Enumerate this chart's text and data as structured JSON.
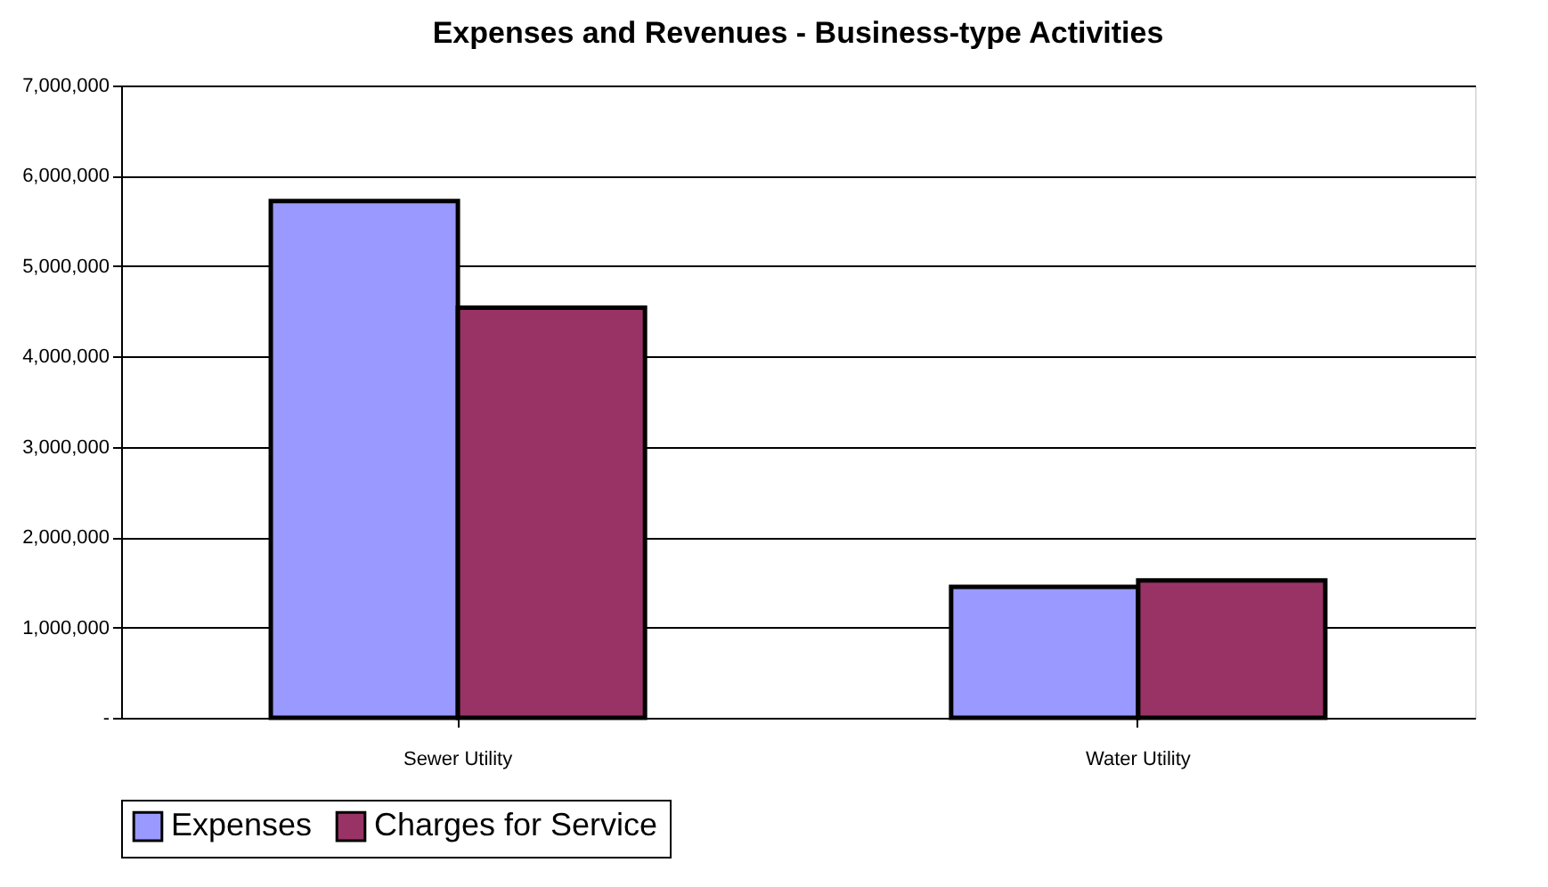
{
  "chart_data": {
    "type": "bar",
    "title": "Expenses and Revenues - Business-type Activities",
    "categories": [
      "Sewer Utility",
      "Water Utility"
    ],
    "series": [
      {
        "name": "Expenses",
        "color": "#9999ff",
        "values": [
          5720000,
          1450000
        ]
      },
      {
        "name": "Charges for Service",
        "color": "#993366",
        "values": [
          4540000,
          1520000
        ]
      }
    ],
    "ylim": [
      0,
      7000000
    ],
    "yticks": [
      {
        "value": 0,
        "label": "-"
      },
      {
        "value": 1000000,
        "label": "1,000,000"
      },
      {
        "value": 2000000,
        "label": "2,000,000"
      },
      {
        "value": 3000000,
        "label": "3,000,000"
      },
      {
        "value": 4000000,
        "label": "4,000,000"
      },
      {
        "value": 5000000,
        "label": "5,000,000"
      },
      {
        "value": 6000000,
        "label": "6,000,000"
      },
      {
        "value": 7000000,
        "label": "7,000,000"
      }
    ],
    "grid": "y",
    "legend": "bottom"
  }
}
